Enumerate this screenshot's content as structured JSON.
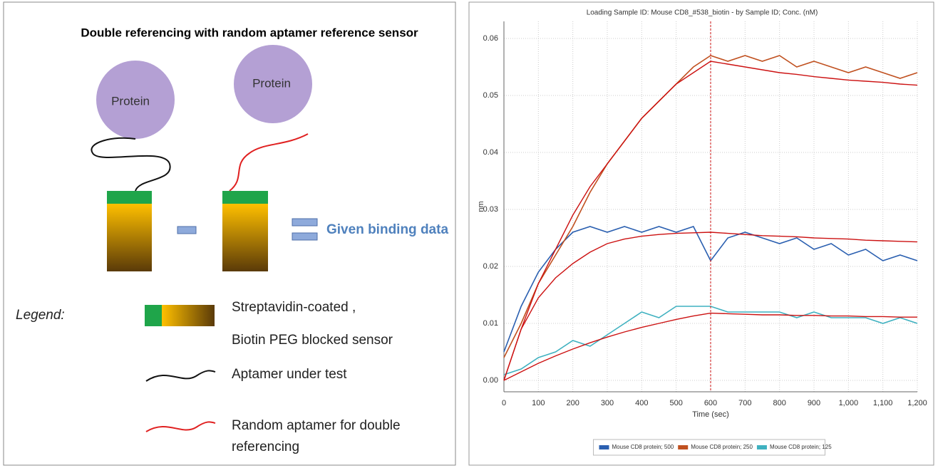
{
  "diagram": {
    "title": "Double referencing  with random aptamer reference sensor",
    "protein_labels": [
      "Protein",
      "Protein"
    ],
    "result_label": "Given binding data",
    "legend": {
      "title": "Legend:",
      "items": [
        "Streptavidin-coated ,",
        "Biotin PEG blocked sensor",
        "Aptamer under test",
        "Random aptamer for double referencing"
      ]
    }
  },
  "chart_data": {
    "type": "line",
    "title": "Loading Sample ID: Mouse CD8_#538_biotin - by Sample ID; Conc. (nM)",
    "x_label": "Time (sec)",
    "y_label": "nm",
    "x": [
      0,
      50,
      100,
      150,
      200,
      250,
      300,
      350,
      400,
      450,
      500,
      550,
      600,
      650,
      700,
      750,
      800,
      850,
      900,
      950,
      1000,
      1050,
      1100,
      1150,
      1200
    ],
    "series": [
      {
        "name": "Mouse CD8 protein; 500",
        "color": "#2a5fb0",
        "values": [
          0.005,
          0.013,
          0.019,
          0.023,
          0.026,
          0.027,
          0.026,
          0.027,
          0.026,
          0.027,
          0.026,
          0.027,
          0.021,
          0.025,
          0.026,
          0.025,
          0.024,
          0.025,
          0.023,
          0.024,
          0.022,
          0.023,
          0.021,
          0.022,
          0.021
        ]
      },
      {
        "name": "Mouse CD8 protein; 250",
        "color": "#c0501f",
        "values": [
          0.004,
          0.01,
          0.017,
          0.022,
          0.027,
          0.033,
          0.038,
          0.042,
          0.046,
          0.049,
          0.052,
          0.055,
          0.057,
          0.056,
          0.057,
          0.056,
          0.057,
          0.055,
          0.056,
          0.055,
          0.054,
          0.055,
          0.054,
          0.053,
          0.054
        ]
      },
      {
        "name": "Mouse CD8 protein; 125",
        "color": "#3fb1c0",
        "values": [
          0.001,
          0.002,
          0.004,
          0.005,
          0.007,
          0.006,
          0.008,
          0.01,
          0.012,
          0.011,
          0.013,
          0.013,
          0.013,
          0.012,
          0.012,
          0.012,
          0.012,
          0.011,
          0.012,
          0.011,
          0.011,
          0.011,
          0.01,
          0.011,
          0.01
        ]
      }
    ],
    "fits": [
      {
        "color": "#cc1111",
        "values": [
          0,
          0.009,
          0.0145,
          0.018,
          0.0205,
          0.0225,
          0.024,
          0.0248,
          0.0253,
          0.0256,
          0.0258,
          0.0259,
          0.026,
          0.0258,
          0.0256,
          0.0254,
          0.0253,
          0.0252,
          0.025,
          0.0249,
          0.0248,
          0.0246,
          0.0245,
          0.0244,
          0.0243
        ]
      },
      {
        "color": "#cc1111",
        "values": [
          0,
          0.009,
          0.017,
          0.023,
          0.029,
          0.034,
          0.038,
          0.042,
          0.046,
          0.049,
          0.052,
          0.054,
          0.056,
          0.0555,
          0.055,
          0.0545,
          0.054,
          0.0537,
          0.0533,
          0.053,
          0.0527,
          0.0525,
          0.0523,
          0.052,
          0.0518
        ]
      },
      {
        "color": "#cc1111",
        "values": [
          0,
          0.0015,
          0.003,
          0.0043,
          0.0055,
          0.0066,
          0.0076,
          0.0085,
          0.0093,
          0.01,
          0.0107,
          0.0113,
          0.0118,
          0.0117,
          0.0116,
          0.0115,
          0.0115,
          0.0114,
          0.0114,
          0.0113,
          0.0113,
          0.0112,
          0.0112,
          0.0111,
          0.0111
        ]
      }
    ],
    "marker_x": 600,
    "xlim": [
      0,
      1200
    ],
    "xticks": [
      0,
      100,
      200,
      300,
      400,
      500,
      600,
      700,
      800,
      900,
      {
        "value": 1000,
        "label": "1,000"
      },
      {
        "value": 1100,
        "label": "1,100"
      },
      {
        "value": 1200,
        "label": "1,200"
      }
    ],
    "ylim": [
      -0.002,
      0.063
    ],
    "yticks": [
      {
        "value": 0,
        "label": "0.00"
      },
      0.01,
      0.02,
      0.03,
      0.04,
      0.05,
      0.06
    ],
    "grid": true
  }
}
